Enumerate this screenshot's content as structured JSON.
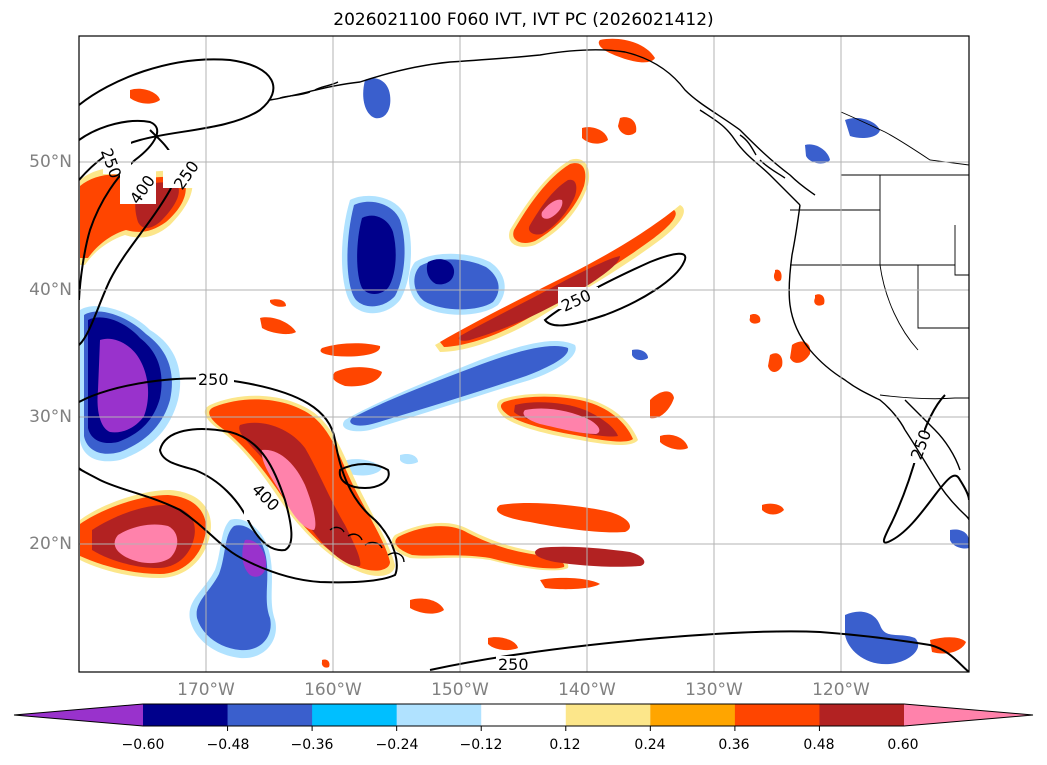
{
  "title": "2026021100 F060 IVT, IVT PC (2026021412)",
  "lat_labels": [
    "50°N",
    "40°N",
    "30°N",
    "20°N"
  ],
  "lon_labels": [
    "170°W",
    "160°W",
    "150°W",
    "140°W",
    "130°W",
    "120°W"
  ],
  "contour_labels": [
    "250",
    "400",
    "250",
    "250",
    "250",
    "250",
    "400",
    "250"
  ],
  "colorbar": {
    "ticks": [
      "−0.60",
      "−0.48",
      "−0.36",
      "−0.24",
      "−0.12",
      "0.12",
      "0.24",
      "0.36",
      "0.48",
      "0.60"
    ],
    "colors": [
      "#9932cc",
      "#00008b",
      "#3a5fcd",
      "#00bfff",
      "#b0e2ff",
      "#ffffff",
      "#fce68a",
      "#ffa500",
      "#ff4500",
      "#b22222",
      "#ff82ab"
    ]
  },
  "colors": {
    "coast": "#000000",
    "grid": "#b3b3b3",
    "contour": "#000000"
  }
}
